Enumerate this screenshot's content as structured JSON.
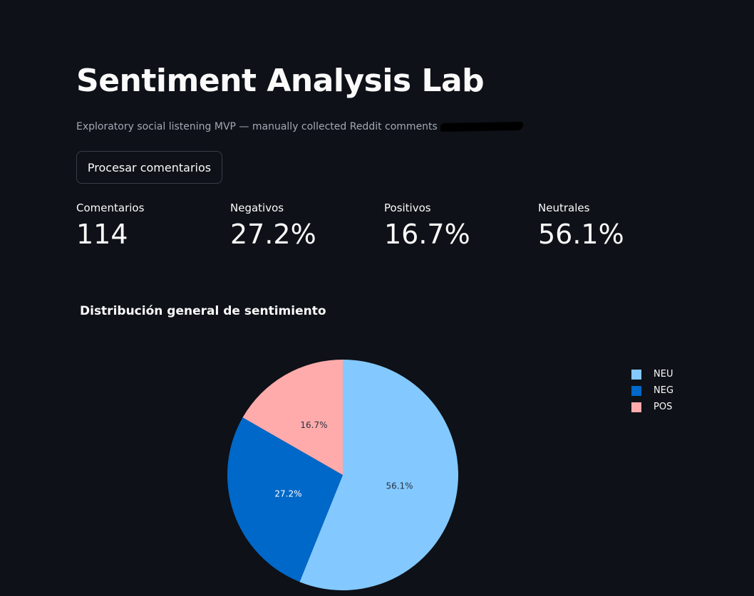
{
  "header": {
    "title": "Sentiment Analysis Lab",
    "subtitle": "Exploratory social listening MVP — manually collected Reddit comments"
  },
  "actions": {
    "process_label": "Procesar comentarios"
  },
  "metrics": [
    {
      "label": "Comentarios",
      "value": "114"
    },
    {
      "label": "Negativos",
      "value": "27.2%"
    },
    {
      "label": "Positivos",
      "value": "16.7%"
    },
    {
      "label": "Neutrales",
      "value": "56.1%"
    }
  ],
  "chart_data": {
    "type": "pie",
    "title": "Distribución general de sentimiento",
    "categories": [
      "NEU",
      "NEG",
      "POS"
    ],
    "values": [
      56.1,
      27.2,
      16.7
    ],
    "labels": [
      "56.1%",
      "27.2%",
      "16.7%"
    ],
    "colors": [
      "#83c9ff",
      "#0068c9",
      "#ffabab"
    ],
    "label_colors": [
      "#2a3040",
      "#ffffff",
      "#2a3040"
    ],
    "direction": "clockwise",
    "start": "top",
    "legend_position": "top-right"
  }
}
